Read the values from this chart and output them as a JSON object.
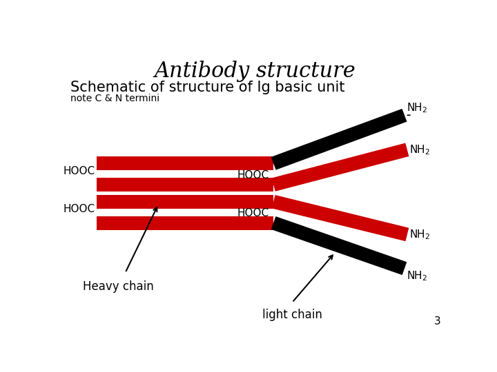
{
  "title": "Antibody structure",
  "subtitle": "Schematic of structure of Ig basic unit",
  "note": "note C & N termini",
  "bg_color": "#ffffff",
  "red": "#cc0000",
  "black": "#000000",
  "title_fontsize": 22,
  "subtitle_fontsize": 15,
  "note_fontsize": 10,
  "label_fontsize": 12,
  "page_num": "3",
  "hw": 13
}
